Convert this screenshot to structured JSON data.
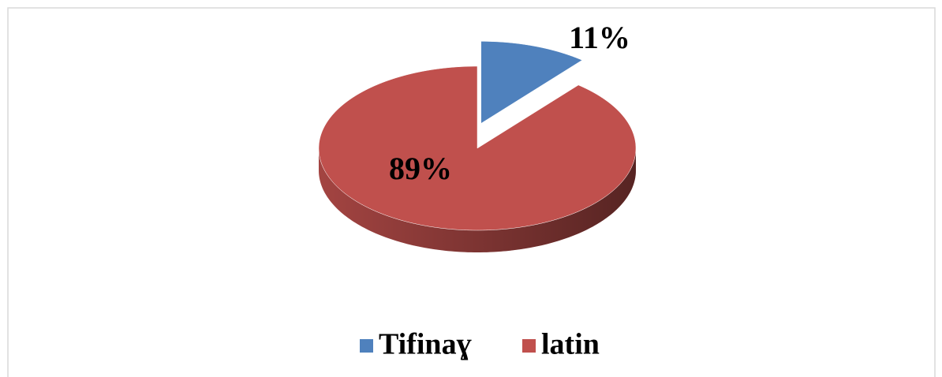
{
  "chart_data": {
    "type": "pie",
    "categories": [
      "Tifinaɣ",
      "latin"
    ],
    "values": [
      11,
      89
    ],
    "value_labels": [
      "11%",
      "89%"
    ],
    "colors": [
      "#4f81bd",
      "#c0504d"
    ],
    "legend": "bottom"
  }
}
